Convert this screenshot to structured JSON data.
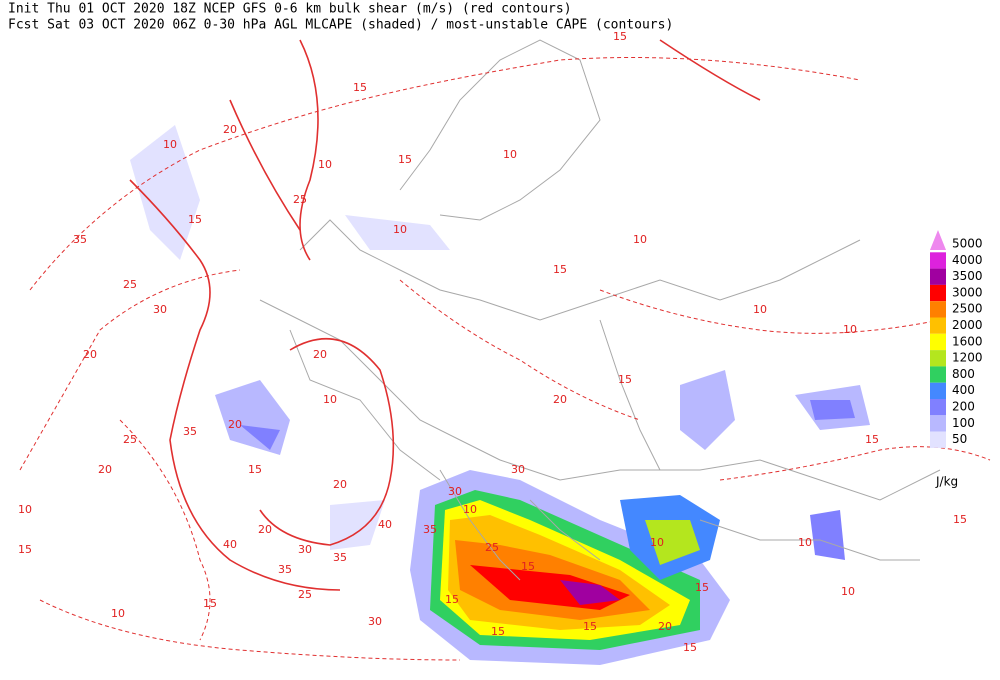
{
  "header": {
    "line1": "Init  Thu 01 OCT 2020 18Z   NCEP GFS 0-6 km bulk shear (m/s) (red contours)",
    "line2": "Fcst Sat 03 OCT 2020 06Z   0-30 hPa AGL MLCAPE (shaded) / most-unstable CAPE (contours)"
  },
  "legend": {
    "levels": [
      {
        "label": "5000",
        "color": "#ee88ee"
      },
      {
        "label": "4000",
        "color": "#dd22dd"
      },
      {
        "label": "3500",
        "color": "#a000a0"
      },
      {
        "label": "3000",
        "color": "#ff0000"
      },
      {
        "label": "2500",
        "color": "#ff8000"
      },
      {
        "label": "2000",
        "color": "#ffc000"
      },
      {
        "label": "1600",
        "color": "#ffff00"
      },
      {
        "label": "1200",
        "color": "#b4e61e"
      },
      {
        "label": "800",
        "color": "#30d060"
      },
      {
        "label": "400",
        "color": "#4488ff"
      },
      {
        "label": "200",
        "color": "#8080ff"
      },
      {
        "label": "100",
        "color": "#b8b8ff"
      },
      {
        "label": "50",
        "color": "#e2e2ff"
      }
    ],
    "unit": "J/kg"
  },
  "contour_labels": [
    "15",
    "15",
    "20",
    "10",
    "25",
    "35",
    "25",
    "30",
    "20",
    "15",
    "10",
    "10",
    "15",
    "15",
    "10",
    "10",
    "10",
    "15",
    "20",
    "20",
    "10",
    "20",
    "35",
    "25",
    "20",
    "15",
    "20",
    "20",
    "40",
    "30",
    "35",
    "35",
    "40",
    "35",
    "30",
    "30",
    "25",
    "15",
    "15",
    "15",
    "15",
    "20",
    "15",
    "10",
    "10",
    "15",
    "30",
    "25",
    "10",
    "15",
    "10",
    "15",
    "15",
    "10",
    "15",
    "10",
    "10"
  ]
}
